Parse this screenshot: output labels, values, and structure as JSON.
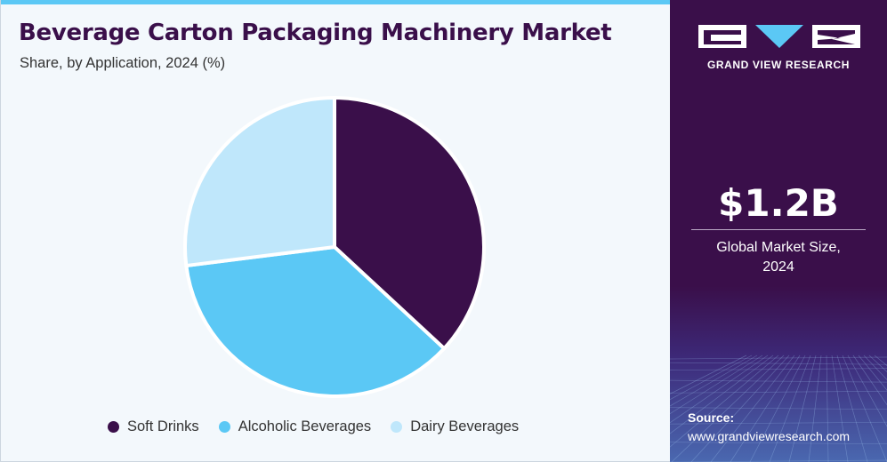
{
  "header": {
    "title": "Beverage Carton Packaging Machinery Market",
    "subtitle": "Share, by Application, 2024 (%)"
  },
  "colors": {
    "accent": "#5bc8f5",
    "brand_purple": "#3a0f4a",
    "soft_drinks": "#3a0f4a",
    "alcoholic_beverages": "#5bc8f5",
    "dairy_beverages": "#bfe7fb"
  },
  "chart_data": {
    "type": "pie",
    "title": "Beverage Carton Packaging Machinery Market",
    "subtitle": "Share, by Application, 2024 (%)",
    "categories": [
      "Soft Drinks",
      "Alcoholic Beverages",
      "Dairy Beverages"
    ],
    "values": [
      36.9,
      36.1,
      27.0
    ],
    "colors": [
      "#3a0f4a",
      "#5bc8f5",
      "#bfe7fb"
    ],
    "legend": "bottom"
  },
  "legend": {
    "items": [
      {
        "label": "Soft Drinks",
        "color": "#3a0f4a"
      },
      {
        "label": "Alcoholic Beverages",
        "color": "#5bc8f5"
      },
      {
        "label": "Dairy Beverages",
        "color": "#bfe7fb"
      }
    ]
  },
  "sidebar": {
    "brand": "GRAND VIEW RESEARCH",
    "logo_icon": "grand-view-research-logo",
    "market_value": "$1.2B",
    "market_caption_line1": "Global Market Size,",
    "market_caption_line2": "2024",
    "source_label": "Source:",
    "source_url": "www.grandviewresearch.com"
  }
}
